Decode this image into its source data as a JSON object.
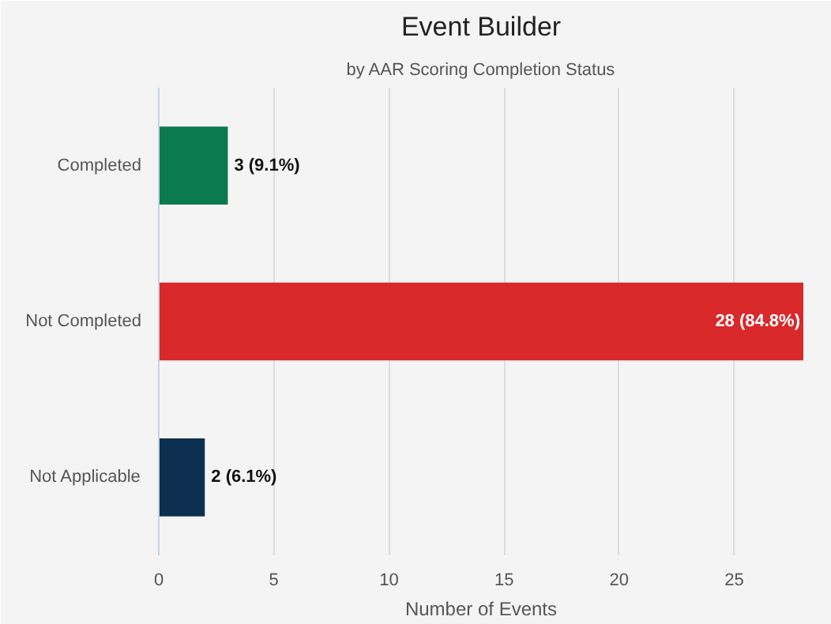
{
  "chart_data": {
    "type": "bar",
    "orientation": "horizontal",
    "title": "Event Builder",
    "subtitle": "by AAR Scoring Completion Status",
    "xlabel": "Number of Events",
    "categories": [
      "Completed",
      "Not Completed",
      "Not Applicable"
    ],
    "values": [
      3,
      28,
      2
    ],
    "colors": [
      "#0b7a4f",
      "#d9292b",
      "#0d3050"
    ],
    "value_labels": [
      "3 (9.1%)",
      "28 (84.8%)",
      "2 (6.1%)"
    ],
    "xlim": [
      0,
      28
    ],
    "xticks": [
      0,
      5,
      10,
      15,
      20,
      25
    ],
    "grid": "x"
  }
}
